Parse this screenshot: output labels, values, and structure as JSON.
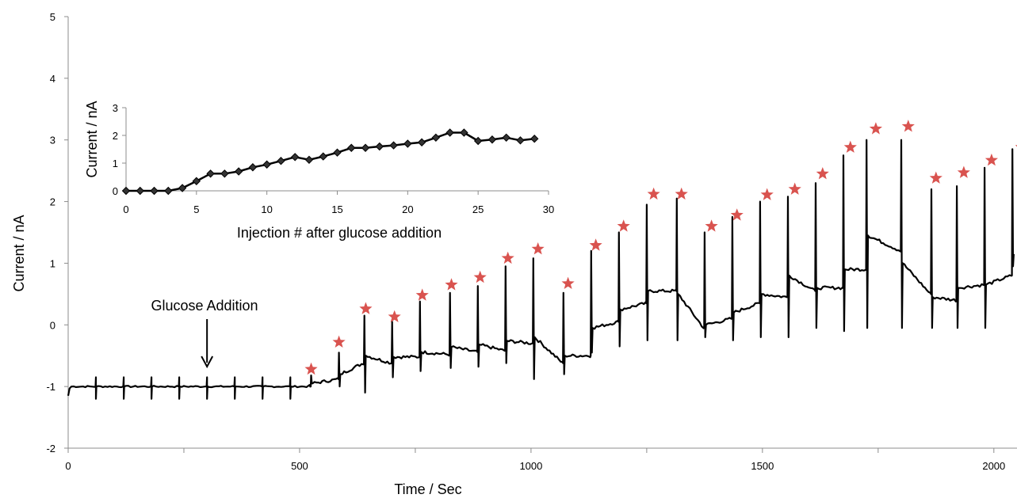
{
  "chart_data": [
    {
      "type": "line",
      "role": "main",
      "xlabel": "Time / Sec",
      "ylabel": "Current  / nA",
      "xlim": [
        0,
        2050
      ],
      "ylim": [
        -2,
        5
      ],
      "x_ticks": [
        0,
        500,
        1000,
        1500,
        2000
      ],
      "y_ticks": [
        -2,
        -1,
        0,
        1,
        2,
        3,
        4,
        5
      ],
      "grid": false,
      "line_color": "#000000",
      "marker_color": "#d9534f",
      "annotation": {
        "text": "Glucose Addition",
        "x": 300
      },
      "baseline": {
        "from": 0,
        "to": 520,
        "value": -1.0,
        "pulse_times": [
          60,
          120,
          180,
          240,
          300,
          360,
          420,
          480
        ],
        "pulse_high": -0.85,
        "pulse_low": -1.2
      },
      "injections": [
        {
          "t": 525,
          "base_before": -1.0,
          "base_after": -0.95,
          "peak": -0.82,
          "dip": -0.95
        },
        {
          "t": 585,
          "base_before": -0.88,
          "base_after": -0.8,
          "peak": -0.45,
          "dip": -1.0
        },
        {
          "t": 640,
          "base_before": -0.62,
          "base_after": -0.5,
          "peak": 0.15,
          "dip": -1.1
        },
        {
          "t": 700,
          "base_before": -0.62,
          "base_after": -0.52,
          "peak": 0.05,
          "dip": -0.85
        },
        {
          "t": 760,
          "base_before": -0.52,
          "base_after": -0.44,
          "peak": 0.38,
          "dip": -0.75
        },
        {
          "t": 825,
          "base_before": -0.48,
          "base_after": -0.36,
          "peak": 0.52,
          "dip": -0.7
        },
        {
          "t": 885,
          "base_before": -0.44,
          "base_after": -0.32,
          "peak": 0.63,
          "dip": -0.68
        },
        {
          "t": 945,
          "base_before": -0.42,
          "base_after": -0.26,
          "peak": 0.95,
          "dip": -0.62
        },
        {
          "t": 1005,
          "base_before": -0.3,
          "base_after": -0.2,
          "peak": 1.08,
          "dip": -0.88
        },
        {
          "t": 1070,
          "base_before": -0.62,
          "base_after": -0.5,
          "peak": 0.52,
          "dip": -0.8
        },
        {
          "t": 1130,
          "base_before": -0.5,
          "base_after": -0.05,
          "peak": 1.2,
          "dip": -0.45
        },
        {
          "t": 1190,
          "base_before": 0.05,
          "base_after": 0.25,
          "peak": 1.5,
          "dip": -0.35
        },
        {
          "t": 1250,
          "base_before": 0.35,
          "base_after": 0.55,
          "peak": 1.95,
          "dip": -0.25
        },
        {
          "t": 1315,
          "base_before": 0.55,
          "base_after": 0.5,
          "peak": 2.05,
          "dip": -0.25
        },
        {
          "t": 1375,
          "base_before": -0.05,
          "base_after": 0.0,
          "peak": 1.5,
          "dip": -0.2
        },
        {
          "t": 1435,
          "base_before": 0.1,
          "base_after": 0.2,
          "peak": 1.75,
          "dip": -0.25
        },
        {
          "t": 1495,
          "base_before": 0.35,
          "base_after": 0.5,
          "peak": 2.0,
          "dip": -0.2
        },
        {
          "t": 1555,
          "base_before": 0.45,
          "base_after": 0.8,
          "peak": 2.08,
          "dip": -0.2
        },
        {
          "t": 1615,
          "base_before": 0.55,
          "base_after": 0.6,
          "peak": 2.3,
          "dip": -0.05
        },
        {
          "t": 1675,
          "base_before": 0.6,
          "base_after": 0.9,
          "peak": 2.75,
          "dip": -0.1
        },
        {
          "t": 1725,
          "base_before": 0.9,
          "base_after": 1.45,
          "peak": 3.0,
          "dip": -0.05
        },
        {
          "t": 1800,
          "base_before": 1.2,
          "base_after": 1.0,
          "peak": 3.0,
          "dip": -0.05
        },
        {
          "t": 1865,
          "base_before": 0.5,
          "base_after": 0.45,
          "peak": 2.2,
          "dip": -0.05
        },
        {
          "t": 1920,
          "base_before": 0.4,
          "base_after": 0.6,
          "peak": 2.25,
          "dip": -0.05
        },
        {
          "t": 1980,
          "base_before": 0.65,
          "base_after": 0.65,
          "peak": 2.55,
          "dip": -0.05
        },
        {
          "t": 2040,
          "base_before": 0.8,
          "base_after": 1.15,
          "peak": 2.85,
          "dip": 0.95
        }
      ],
      "stars": [
        {
          "x": 525,
          "y": -0.72
        },
        {
          "x": 585,
          "y": -0.28
        },
        {
          "x": 643,
          "y": 0.26
        },
        {
          "x": 705,
          "y": 0.13
        },
        {
          "x": 765,
          "y": 0.48
        },
        {
          "x": 828,
          "y": 0.65
        },
        {
          "x": 890,
          "y": 0.77
        },
        {
          "x": 950,
          "y": 1.08
        },
        {
          "x": 1015,
          "y": 1.23
        },
        {
          "x": 1080,
          "y": 0.67
        },
        {
          "x": 1140,
          "y": 1.29
        },
        {
          "x": 1200,
          "y": 1.6
        },
        {
          "x": 1265,
          "y": 2.12
        },
        {
          "x": 1325,
          "y": 2.12
        },
        {
          "x": 1390,
          "y": 1.6
        },
        {
          "x": 1445,
          "y": 1.78
        },
        {
          "x": 1510,
          "y": 2.11
        },
        {
          "x": 1570,
          "y": 2.2
        },
        {
          "x": 1630,
          "y": 2.45
        },
        {
          "x": 1690,
          "y": 2.88
        },
        {
          "x": 1745,
          "y": 3.18
        },
        {
          "x": 1815,
          "y": 3.22
        },
        {
          "x": 1875,
          "y": 2.38
        },
        {
          "x": 1935,
          "y": 2.47
        },
        {
          "x": 1995,
          "y": 2.67
        },
        {
          "x": 2060,
          "y": 2.88
        }
      ]
    },
    {
      "type": "line",
      "role": "inset",
      "xlabel": "Injection # after glucose addition",
      "ylabel": "Current  / nA",
      "xlim": [
        0,
        30
      ],
      "ylim": [
        0,
        3
      ],
      "x_ticks": [
        0,
        5,
        10,
        15,
        20,
        25,
        30
      ],
      "y_ticks": [
        0,
        1,
        2,
        3
      ],
      "marker": "diamond",
      "line_color": "#000000",
      "x": [
        0,
        1,
        2,
        3,
        4,
        5,
        6,
        7,
        8,
        9,
        10,
        11,
        12,
        13,
        14,
        15,
        16,
        17,
        18,
        19,
        20,
        21,
        22,
        23,
        24,
        25,
        26,
        27,
        28,
        29
      ],
      "values": [
        0.0,
        0.0,
        0.0,
        0.0,
        0.1,
        0.35,
        0.62,
        0.62,
        0.7,
        0.85,
        0.95,
        1.08,
        1.22,
        1.12,
        1.24,
        1.38,
        1.55,
        1.55,
        1.6,
        1.64,
        1.7,
        1.75,
        1.92,
        2.1,
        2.1,
        1.8,
        1.85,
        1.92,
        1.82,
        1.88
      ]
    }
  ]
}
